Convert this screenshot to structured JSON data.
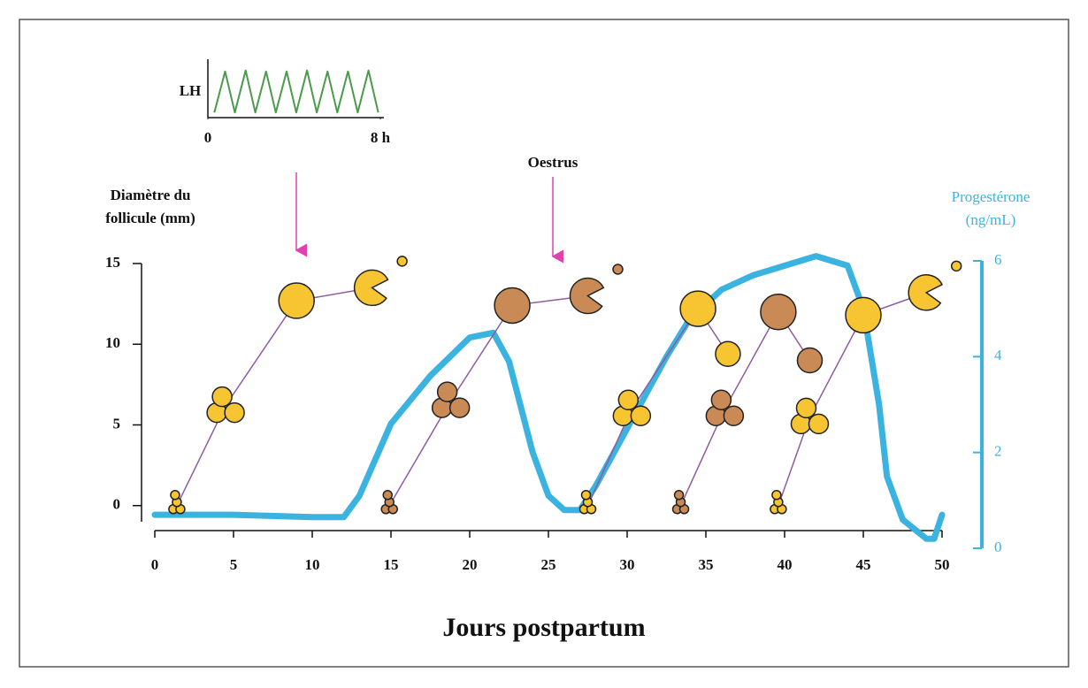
{
  "chart_data": [
    {
      "type": "line",
      "xlabel": "Jours postpartum",
      "ylabel": [
        "Diamètre du",
        "follicule (mm)"
      ],
      "y2label": [
        "Progestérone",
        "(ng/mL)"
      ],
      "annotation": "Oestrus",
      "xlim": [
        0,
        50
      ],
      "xticks": [
        0,
        5,
        10,
        15,
        20,
        25,
        30,
        35,
        40,
        45,
        50
      ],
      "ylim": [
        -1,
        15
      ],
      "yticks": [
        0,
        5,
        10,
        15
      ],
      "y2lim": [
        0,
        6
      ],
      "y2ticks": [
        0,
        2,
        4,
        6
      ],
      "line_color": "#8e5ba0",
      "series": [
        {
          "x": [
            1.4,
            4.5,
            9,
            13.8
          ],
          "values": [
            0,
            6.2,
            12.7,
            13.5
          ],
          "color": "#f7c531",
          "ovulation": true
        },
        {
          "x": [
            14.9,
            18.8,
            22.7,
            27.5
          ],
          "values": [
            0,
            6.5,
            12.4,
            13
          ],
          "color": "#c98a55",
          "ovulation": true
        },
        {
          "x": [
            27.5,
            30.3,
            34.5,
            36.4
          ],
          "values": [
            0,
            6,
            12.2,
            9.4
          ],
          "color": "#f7c531",
          "ovulation": false
        },
        {
          "x": [
            33.4,
            36.2,
            39.6,
            41.6
          ],
          "values": [
            0,
            6,
            12,
            9
          ],
          "color": "#c98a55",
          "ovulation": false
        },
        {
          "x": [
            39.6,
            41.6,
            45,
            49
          ],
          "values": [
            0,
            5.5,
            11.8,
            13.2
          ],
          "color": "#f7c531",
          "ovulation": true
        },
        {
          "axis": "y2",
          "color": "#3bb3e0",
          "x": [
            0,
            5,
            10,
            12,
            13,
            15,
            17.5,
            20,
            21.5,
            22.5,
            24,
            25,
            26,
            27,
            28,
            30,
            32.5,
            34,
            36,
            38,
            42,
            44,
            45,
            46,
            46.5,
            47.5,
            49,
            49.5,
            50
          ],
          "values": [
            0.7,
            0.7,
            0.65,
            0.65,
            1.1,
            2.6,
            3.6,
            4.4,
            4.5,
            3.9,
            2,
            1.1,
            0.8,
            0.8,
            1.3,
            2.5,
            4,
            4.8,
            5.4,
            5.7,
            6.1,
            5.9,
            5,
            3,
            1.5,
            0.6,
            0.2,
            0.2,
            0.7
          ]
        }
      ]
    },
    {
      "type": "line",
      "ylabel": "LH",
      "xlim": [
        0,
        8
      ],
      "xticks": [
        0,
        {
          "value": 8,
          "label": "8 h"
        }
      ],
      "ylim": [
        0,
        1
      ],
      "series": [
        {
          "color": "#4a9a4a",
          "x": [
            0.3,
            0.8,
            1.25,
            1.75,
            2.2,
            2.7,
            3.15,
            3.65,
            4.1,
            4.6,
            5.05,
            5.55,
            6.0,
            6.5,
            6.95,
            7.45,
            7.9
          ],
          "values": [
            0.1,
            0.9,
            0.1,
            0.92,
            0.1,
            0.9,
            0.1,
            0.9,
            0.1,
            0.92,
            0.1,
            0.9,
            0.1,
            0.9,
            0.1,
            0.92,
            0.1
          ]
        }
      ]
    }
  ]
}
